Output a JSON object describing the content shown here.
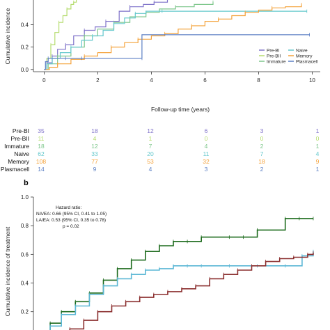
{
  "panel_b_letter": "b",
  "risk_table": {
    "rows": [
      {
        "label": "Pre-BI",
        "color": "#7f72c9",
        "values": [
          "35",
          "18",
          "12",
          "6",
          "3",
          "1"
        ]
      },
      {
        "label": "Pre-BII",
        "color": "#b5dc6e",
        "values": [
          "11",
          "4",
          "1",
          "0",
          "0",
          "0"
        ]
      },
      {
        "label": "Immature",
        "color": "#7cc68a",
        "values": [
          "18",
          "12",
          "7",
          "4",
          "2",
          "1"
        ]
      },
      {
        "label": "Naive",
        "color": "#64c8cc",
        "values": [
          "62",
          "33",
          "20",
          "11",
          "7",
          "4"
        ]
      },
      {
        "label": "Memory",
        "color": "#f4a23a",
        "values": [
          "108",
          "77",
          "53",
          "32",
          "18",
          "9"
        ]
      },
      {
        "label": "Plasmacell",
        "color": "#5b7fc4",
        "values": [
          "14",
          "9",
          "4",
          "3",
          "2",
          "1"
        ]
      }
    ]
  },
  "chart_data": [
    {
      "type": "line",
      "title": "",
      "xlabel": "Follow-up time (years)",
      "ylabel": "Cumulative incidence",
      "xlim": [
        -0.4,
        10.3
      ],
      "ylim": [
        -0.02,
        0.62
      ],
      "x_ticks": [
        "0",
        "2",
        "4",
        "6",
        "8",
        "10"
      ],
      "y_ticks": [
        "0.0",
        "0.2",
        "0.4"
      ],
      "grid": false,
      "legend_position": "bottom-right",
      "legend": [
        {
          "name": "Pre-BI",
          "color": "#7f72c9"
        },
        {
          "name": "Naive",
          "color": "#64c8cc"
        },
        {
          "name": "Pre-BII",
          "color": "#b5dc6e"
        },
        {
          "name": "Memory",
          "color": "#f4a23a"
        },
        {
          "name": "Immature",
          "color": "#7cc68a"
        },
        {
          "name": "Plasmacell",
          "color": "#5b7fc4"
        }
      ],
      "series": [
        {
          "name": "Pre-BII",
          "color": "#b5dc6e",
          "x": [
            0,
            0.1,
            0.25,
            0.4,
            0.55,
            0.7,
            0.85,
            1.0,
            1.1,
            1.2,
            1.3
          ],
          "y": [
            0,
            0.1,
            0.22,
            0.33,
            0.42,
            0.48,
            0.54,
            0.58,
            0.6,
            0.63,
            0.66
          ]
        },
        {
          "name": "Pre-BI",
          "color": "#7f72c9",
          "x": [
            0,
            0.1,
            0.3,
            0.5,
            0.8,
            1.1,
            1.5,
            1.9,
            2.3,
            2.8,
            3.2,
            3.7,
            4.1,
            4.4,
            4.6
          ],
          "y": [
            0,
            0.06,
            0.12,
            0.18,
            0.22,
            0.3,
            0.35,
            0.38,
            0.43,
            0.52,
            0.56,
            0.58,
            0.6,
            0.6,
            0.65
          ]
        },
        {
          "name": "Immature",
          "color": "#7cc68a",
          "x": [
            0,
            0.15,
            0.5,
            1.0,
            1.5,
            2.0,
            2.6,
            3.2,
            3.8,
            4.3,
            4.9,
            5.6,
            6.3
          ],
          "y": [
            0,
            0.05,
            0.12,
            0.2,
            0.3,
            0.36,
            0.42,
            0.47,
            0.51,
            0.54,
            0.56,
            0.58,
            0.6
          ]
        },
        {
          "name": "Naive",
          "color": "#64c8cc",
          "x": [
            0,
            0.1,
            0.3,
            0.6,
            1.0,
            1.4,
            1.8,
            2.2,
            2.6,
            3.0,
            3.4,
            3.8,
            4.4,
            5.0,
            9.8
          ],
          "y": [
            0,
            0.05,
            0.1,
            0.15,
            0.2,
            0.26,
            0.3,
            0.35,
            0.41,
            0.46,
            0.5,
            0.52,
            0.52,
            0.52,
            0.52
          ]
        },
        {
          "name": "Memory",
          "color": "#f4a23a",
          "x": [
            0,
            0.2,
            0.5,
            1.0,
            1.5,
            2.0,
            2.5,
            3.0,
            3.5,
            4.0,
            4.5,
            5.0,
            5.5,
            6.0,
            6.5,
            7.0,
            7.5,
            8.0,
            8.5,
            9.0,
            9.6
          ],
          "y": [
            0,
            0.02,
            0.05,
            0.09,
            0.12,
            0.15,
            0.2,
            0.24,
            0.27,
            0.3,
            0.32,
            0.36,
            0.39,
            0.43,
            0.45,
            0.48,
            0.51,
            0.53,
            0.55,
            0.56,
            0.58
          ]
        },
        {
          "name": "Plasmacell",
          "color": "#5b7fc4",
          "x": [
            0,
            0.05,
            0.15,
            0.4,
            0.8,
            1.0,
            1.4,
            3.0,
            3.65,
            3.65,
            9.9
          ],
          "y": [
            0,
            0.07,
            0.1,
            0.1,
            0.1,
            0.1,
            0.1,
            0.1,
            0.1,
            0.31,
            0.31
          ]
        }
      ]
    },
    {
      "type": "line",
      "title": "",
      "xlabel": "",
      "ylabel": "Cumulative incidence of treatment",
      "xlim": [
        0,
        10.3
      ],
      "ylim": [
        -0.02,
        1.0
      ],
      "y_ticks": [
        "0.2",
        "0.4",
        "0.6",
        "0.8",
        "1.0"
      ],
      "grid": false,
      "annotation": [
        "Hazard ratio:",
        "NA/EA: 0.66 (95% CI, 0.41 to 1.05)",
        "LA/EA: 0.53 (95% CI, 0.35 to 0.78)",
        "p = 0.02"
      ],
      "series": [
        {
          "color": "#1d6b1d",
          "x": [
            0.3,
            0.6,
            1.0,
            1.5,
            2.0,
            2.5,
            3.0,
            3.5,
            4.0,
            4.5,
            5.0,
            5.5,
            6.0,
            7.0,
            7.5,
            8.0,
            9.0,
            9.5,
            10.0
          ],
          "y": [
            0.05,
            0.12,
            0.2,
            0.27,
            0.33,
            0.42,
            0.5,
            0.56,
            0.62,
            0.66,
            0.69,
            0.69,
            0.72,
            0.72,
            0.72,
            0.77,
            0.85,
            0.85,
            0.85
          ]
        },
        {
          "color": "#5bb7d5",
          "x": [
            0.3,
            0.6,
            1.0,
            1.5,
            2.0,
            2.5,
            3.0,
            3.5,
            4.0,
            4.5,
            5.0,
            5.5,
            6.0,
            7.0,
            8.0,
            9.0,
            9.6,
            10.0
          ],
          "y": [
            0.04,
            0.1,
            0.18,
            0.24,
            0.32,
            0.38,
            0.43,
            0.46,
            0.49,
            0.5,
            0.52,
            0.52,
            0.52,
            0.52,
            0.52,
            0.52,
            0.59,
            0.62
          ]
        },
        {
          "color": "#8b2f2f",
          "x": [
            0.3,
            0.8,
            1.3,
            1.8,
            2.3,
            2.8,
            3.3,
            3.8,
            4.3,
            4.8,
            5.3,
            5.8,
            6.3,
            6.8,
            7.3,
            7.8,
            8.3,
            8.8,
            9.3,
            9.8,
            10.0
          ],
          "y": [
            0.0,
            0.04,
            0.08,
            0.14,
            0.2,
            0.24,
            0.27,
            0.3,
            0.32,
            0.34,
            0.36,
            0.38,
            0.43,
            0.46,
            0.49,
            0.52,
            0.55,
            0.57,
            0.58,
            0.6,
            0.61
          ]
        }
      ]
    }
  ]
}
